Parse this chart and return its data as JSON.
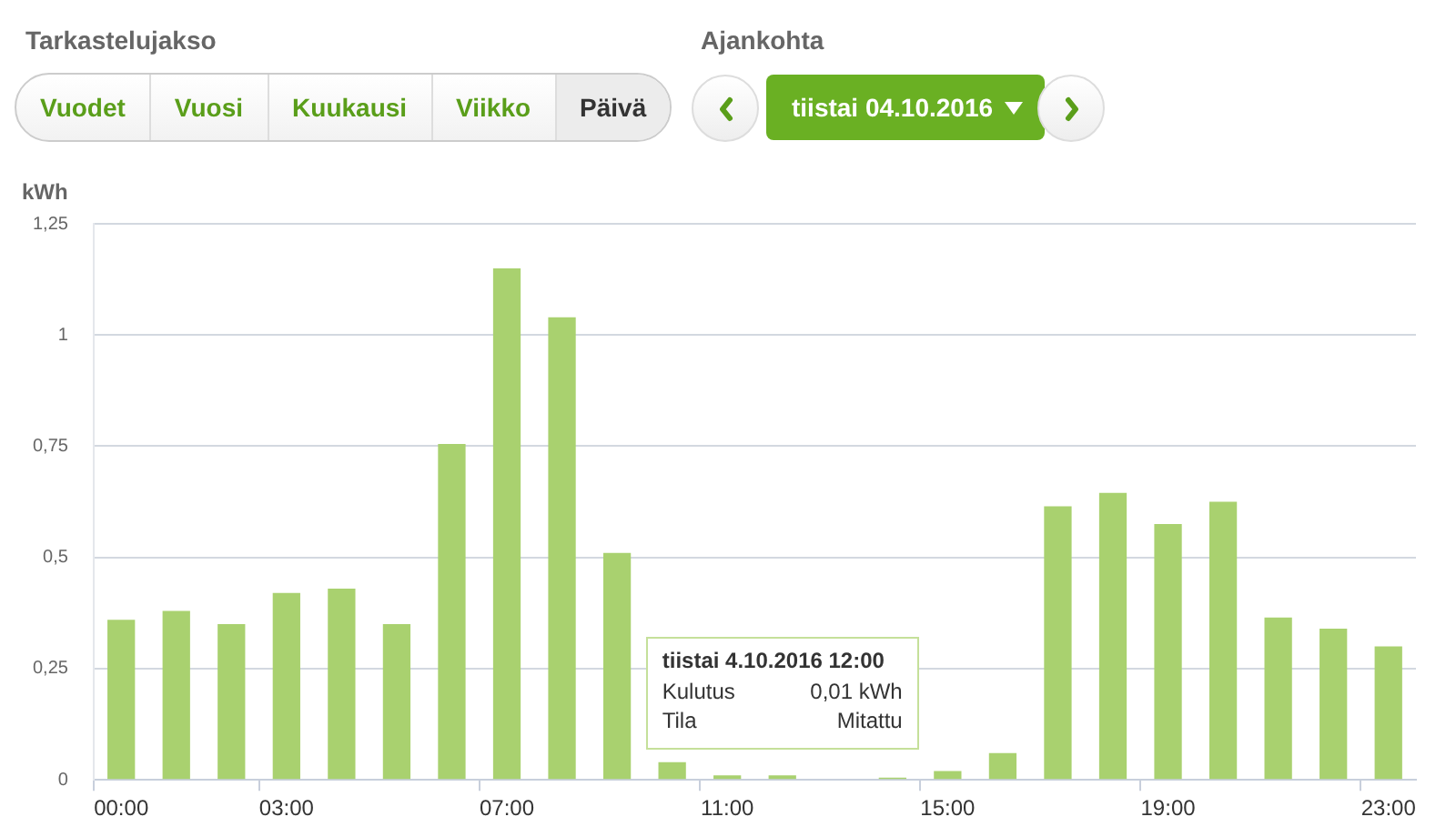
{
  "chart_data": {
    "type": "bar",
    "ylabel": "kWh",
    "categories": [
      "00:00",
      null,
      null,
      "03:00",
      null,
      null,
      null,
      "07:00",
      null,
      null,
      null,
      "11:00",
      null,
      null,
      null,
      "15:00",
      null,
      null,
      null,
      "19:00",
      null,
      null,
      null,
      "23:00"
    ],
    "values": [
      0.36,
      0.38,
      0.35,
      0.42,
      0.43,
      0.35,
      0.755,
      1.15,
      1.04,
      0.51,
      0.04,
      0.01,
      0.01,
      0,
      0.005,
      0.02,
      0.06,
      0.615,
      0.645,
      0.575,
      0.625,
      0.365,
      0.34,
      0.3
    ],
    "color": "#a9d16f",
    "ylim": [
      0,
      1.25
    ],
    "yticks": [
      0,
      {
        "value": 0.25,
        "label": "0,25"
      },
      {
        "value": 0.5,
        "label": "0,5"
      },
      {
        "value": 0.75,
        "label": "0,75"
      },
      1,
      {
        "value": 1.25,
        "label": "1,25"
      }
    ],
    "grid": "y",
    "legend": false,
    "annotations": [
      "Tarkastelujakso",
      "Vuodet",
      "Vuosi",
      "Kuukausi",
      "Viikko",
      "Päivä",
      "Ajankohta",
      "tiistai 04.10.2016",
      "tiistai 4.10.2016 12:00",
      "Kulutus",
      "0,01 kWh",
      "Tila",
      "Mitattu"
    ]
  }
}
